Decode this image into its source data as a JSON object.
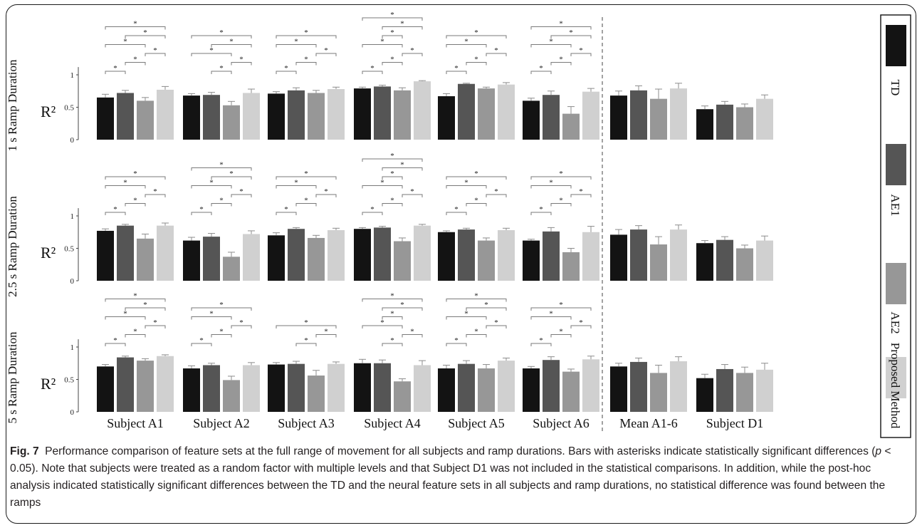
{
  "caption": {
    "label": "Fig. 7",
    "part1": "Performance comparison of feature sets at the full range of movement for all subjects and ramp durations. Bars with asterisks indicate statistically significant differences (",
    "p_symbol": "p",
    "part2": " < 0.05). Note that subjects were treated as a random factor with multiple levels and that Subject D1 was not included in the statistical comparisons. In addition, while the post-hoc analysis indicated statistically significant differences between the TD and the neural feature sets in all subjects and ramp durations, no statistical difference was found between the ramps"
  },
  "colors": {
    "TD": "#131313",
    "AE1": "#555555",
    "AE2": "#979797",
    "Proposed Method": "#d0d0d0",
    "error_bar": "#8c8c8c",
    "bracket": "#7a7a7a"
  },
  "chart_data": {
    "type": "bar",
    "categories": [
      "Subject A1",
      "Subject A2",
      "Subject A3",
      "Subject A4",
      "Subject A5",
      "Subject A6",
      "Mean A1-6",
      "Subject D1"
    ],
    "legend": [
      "TD",
      "AE1",
      "AE2",
      "Proposed Method"
    ],
    "legend_position": "right",
    "ylabel": "R²",
    "ylim": [
      0,
      1
    ],
    "yticks": [
      "0",
      "0.5",
      "1"
    ],
    "significance_marker": "*",
    "separator_after_category": "Subject A6",
    "panels": [
      {
        "title": "1 s Ramp Duration",
        "values": [
          [
            0.65,
            0.72,
            0.6,
            0.77
          ],
          [
            0.68,
            0.69,
            0.53,
            0.72
          ],
          [
            0.71,
            0.76,
            0.72,
            0.78
          ],
          [
            0.79,
            0.82,
            0.76,
            0.9
          ],
          [
            0.67,
            0.86,
            0.79,
            0.85
          ],
          [
            0.6,
            0.69,
            0.4,
            0.74
          ],
          [
            0.68,
            0.76,
            0.63,
            0.79
          ],
          [
            0.47,
            0.54,
            0.5,
            0.63
          ]
        ],
        "errors": [
          [
            0.05,
            0.04,
            0.05,
            0.05
          ],
          [
            0.03,
            0.04,
            0.06,
            0.06
          ],
          [
            0.03,
            0.04,
            0.04,
            0.03
          ],
          [
            0.02,
            0.02,
            0.04,
            0.01
          ],
          [
            0.04,
            0.01,
            0.02,
            0.03
          ],
          [
            0.04,
            0.06,
            0.11,
            0.05
          ],
          [
            0.07,
            0.07,
            0.15,
            0.08
          ],
          [
            0.05,
            0.05,
            0.05,
            0.06
          ]
        ],
        "significance": [
          [
            [
              0,
              1
            ],
            [
              1,
              2
            ],
            [
              2,
              3
            ],
            [
              0,
              2
            ],
            [
              1,
              3
            ],
            [
              0,
              3
            ]
          ],
          [
            [
              1,
              2
            ],
            [
              2,
              3
            ],
            [
              0,
              2
            ],
            [
              1,
              3
            ],
            [
              0,
              3
            ]
          ],
          [
            [
              0,
              1
            ],
            [
              1,
              2
            ],
            [
              2,
              3
            ],
            [
              0,
              2
            ],
            [
              0,
              3
            ]
          ],
          [
            [
              0,
              1
            ],
            [
              1,
              2
            ],
            [
              2,
              3
            ],
            [
              0,
              2
            ],
            [
              1,
              2
            ],
            [
              1,
              3
            ],
            [
              0,
              3
            ]
          ],
          [
            [
              0,
              1
            ],
            [
              1,
              2
            ],
            [
              2,
              3
            ],
            [
              0,
              2
            ],
            [
              0,
              3
            ]
          ],
          [
            [
              0,
              1
            ],
            [
              1,
              2
            ],
            [
              2,
              3
            ],
            [
              0,
              2
            ],
            [
              1,
              3
            ],
            [
              0,
              3
            ]
          ]
        ]
      },
      {
        "title": "2.5 s Ramp Duration",
        "values": [
          [
            0.77,
            0.85,
            0.65,
            0.85
          ],
          [
            0.62,
            0.68,
            0.37,
            0.72
          ],
          [
            0.7,
            0.8,
            0.66,
            0.78
          ],
          [
            0.8,
            0.82,
            0.61,
            0.85
          ],
          [
            0.75,
            0.79,
            0.62,
            0.78
          ],
          [
            0.62,
            0.76,
            0.44,
            0.75
          ],
          [
            0.71,
            0.79,
            0.56,
            0.79
          ],
          [
            0.58,
            0.63,
            0.5,
            0.62
          ]
        ],
        "errors": [
          [
            0.03,
            0.02,
            0.07,
            0.04
          ],
          [
            0.05,
            0.05,
            0.07,
            0.05
          ],
          [
            0.04,
            0.02,
            0.04,
            0.03
          ],
          [
            0.02,
            0.02,
            0.05,
            0.02
          ],
          [
            0.02,
            0.02,
            0.04,
            0.03
          ],
          [
            0.02,
            0.06,
            0.06,
            0.09
          ],
          [
            0.08,
            0.06,
            0.12,
            0.07
          ],
          [
            0.04,
            0.05,
            0.05,
            0.07
          ]
        ],
        "significance": [
          [
            [
              0,
              1
            ],
            [
              1,
              2
            ],
            [
              2,
              3
            ],
            [
              0,
              2
            ],
            [
              0,
              3
            ]
          ],
          [
            [
              0,
              1
            ],
            [
              1,
              2
            ],
            [
              2,
              3
            ],
            [
              0,
              2
            ],
            [
              1,
              3
            ],
            [
              0,
              3
            ]
          ],
          [
            [
              0,
              1
            ],
            [
              1,
              2
            ],
            [
              2,
              3
            ],
            [
              0,
              2
            ],
            [
              0,
              3
            ]
          ],
          [
            [
              0,
              1
            ],
            [
              1,
              2
            ],
            [
              2,
              3
            ],
            [
              0,
              2
            ],
            [
              1,
              2
            ],
            [
              1,
              3
            ],
            [
              0,
              3
            ]
          ],
          [
            [
              0,
              1
            ],
            [
              1,
              2
            ],
            [
              2,
              3
            ],
            [
              0,
              2
            ],
            [
              0,
              3
            ]
          ],
          [
            [
              0,
              1
            ],
            [
              1,
              2
            ],
            [
              2,
              3
            ],
            [
              0,
              2
            ],
            [
              0,
              3
            ]
          ]
        ]
      },
      {
        "title": "5 s Ramp Duration",
        "values": [
          [
            0.7,
            0.84,
            0.79,
            0.86
          ],
          [
            0.67,
            0.72,
            0.49,
            0.72
          ],
          [
            0.73,
            0.74,
            0.56,
            0.74
          ],
          [
            0.75,
            0.75,
            0.47,
            0.72
          ],
          [
            0.67,
            0.74,
            0.67,
            0.79
          ],
          [
            0.67,
            0.8,
            0.62,
            0.81
          ],
          [
            0.7,
            0.77,
            0.6,
            0.78
          ],
          [
            0.52,
            0.66,
            0.6,
            0.65
          ]
        ],
        "errors": [
          [
            0.03,
            0.02,
            0.03,
            0.02
          ],
          [
            0.04,
            0.03,
            0.06,
            0.04
          ],
          [
            0.03,
            0.04,
            0.08,
            0.03
          ],
          [
            0.06,
            0.05,
            0.04,
            0.07
          ],
          [
            0.05,
            0.05,
            0.06,
            0.04
          ],
          [
            0.03,
            0.05,
            0.04,
            0.05
          ],
          [
            0.05,
            0.06,
            0.12,
            0.07
          ],
          [
            0.06,
            0.07,
            0.09,
            0.1
          ]
        ],
        "significance": [
          [
            [
              0,
              1
            ],
            [
              1,
              2
            ],
            [
              2,
              3
            ],
            [
              0,
              2
            ],
            [
              1,
              3
            ],
            [
              0,
              3
            ]
          ],
          [
            [
              0,
              1
            ],
            [
              1,
              2
            ],
            [
              2,
              3
            ],
            [
              0,
              2
            ],
            [
              0,
              3
            ]
          ],
          [
            [
              1,
              2
            ],
            [
              2,
              3
            ],
            [
              0,
              3
            ]
          ],
          [
            [
              1,
              2
            ],
            [
              2,
              3
            ],
            [
              0,
              2
            ],
            [
              1,
              2
            ],
            [
              1,
              3
            ],
            [
              0,
              3
            ]
          ],
          [
            [
              0,
              1
            ],
            [
              1,
              2
            ],
            [
              2,
              3
            ],
            [
              0,
              2
            ],
            [
              1,
              3
            ],
            [
              0,
              3
            ]
          ],
          [
            [
              0,
              1
            ],
            [
              1,
              2
            ],
            [
              2,
              3
            ],
            [
              0,
              2
            ],
            [
              0,
              3
            ]
          ]
        ]
      }
    ]
  }
}
